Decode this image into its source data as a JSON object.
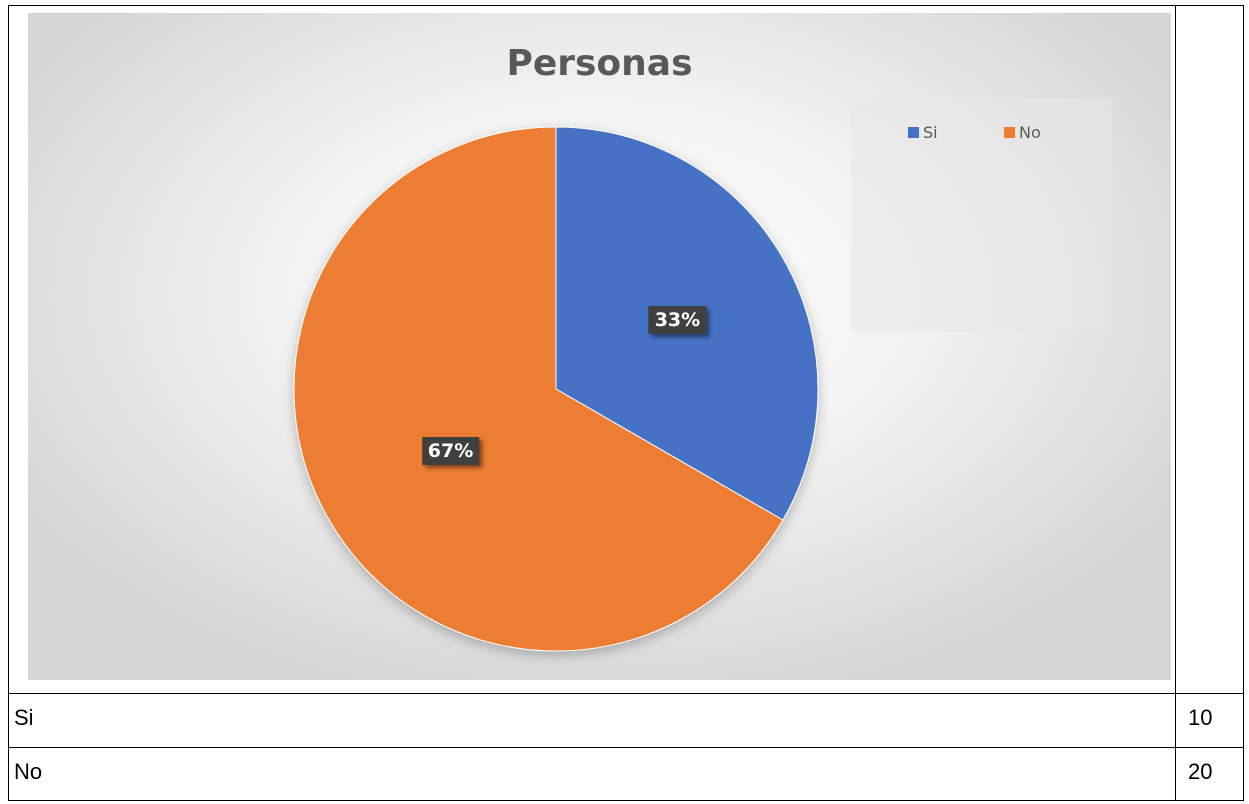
{
  "chart_data": {
    "type": "pie",
    "title": "Personas",
    "categories": [
      "Si",
      "No"
    ],
    "values": [
      10,
      20
    ],
    "percent_labels": [
      "33%",
      "67%"
    ],
    "colors": [
      "#4472C4",
      "#ED7D31"
    ],
    "legend_position": "top-right"
  },
  "table": {
    "rows": [
      {
        "label": "Si",
        "value": "10"
      },
      {
        "label": "No",
        "value": "20"
      }
    ]
  }
}
